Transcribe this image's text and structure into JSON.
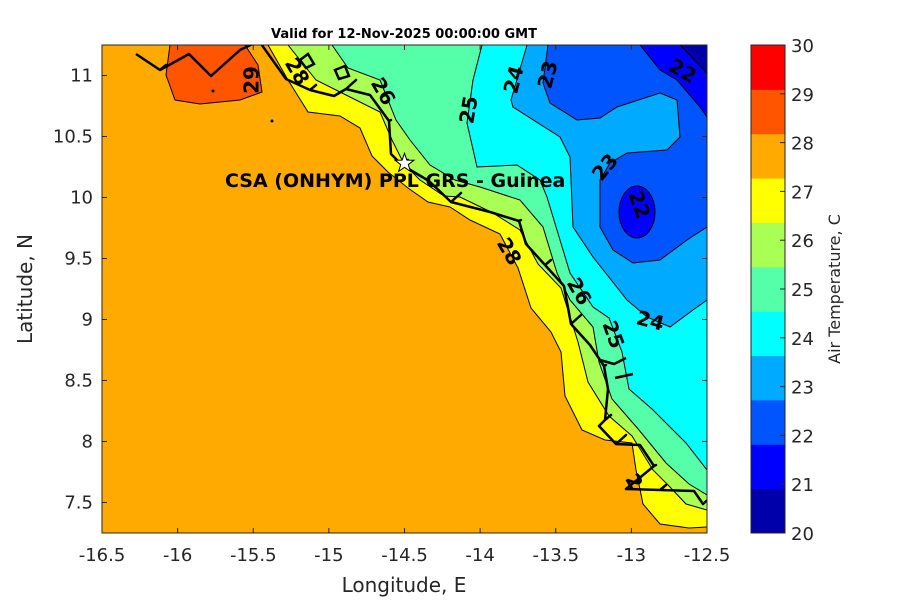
{
  "chart_data": {
    "type": "contour",
    "title": "Valid for 12-Nov-2025 00:00:00 GMT",
    "xlabel": "Longitude, E",
    "ylabel": "Latitude, N",
    "xlim": [
      -16.5,
      -12.5
    ],
    "ylim": [
      7.25,
      11.25
    ],
    "xticks": [
      -16.5,
      -16,
      -15.5,
      -15,
      -14.5,
      -14,
      -13.5,
      -13,
      -12.5
    ],
    "xtick_labels": [
      "-16.5",
      "-16",
      "-15.5",
      "-15",
      "-14.5",
      "-14",
      "-13.5",
      "-13",
      "-12.5"
    ],
    "yticks": [
      7.5,
      8,
      8.5,
      9,
      9.5,
      10,
      10.5,
      11
    ],
    "ytick_labels": [
      "7.5",
      "8",
      "8.5",
      "9",
      "9.5",
      "10",
      "10.5",
      "11"
    ],
    "annotation": "CSA (ONHYM) PPL GRS  - Guinea",
    "marker": {
      "symbol": "star",
      "lon": -14.5,
      "lat": 10.28
    },
    "contour_labels": [
      "29",
      "28",
      "26",
      "25",
      "24",
      "23",
      "22",
      "23",
      "22",
      "24",
      "28",
      "26",
      "25",
      "2"
    ],
    "colorbar": {
      "label": "Air Temperature, C",
      "range": [
        20,
        30
      ],
      "ticks": [
        "20",
        "21",
        "22",
        "23",
        "24",
        "25",
        "26",
        "27",
        "28",
        "29",
        "30"
      ],
      "colors": [
        "#0000aa",
        "#0000ff",
        "#0055ff",
        "#00aaff",
        "#00ffff",
        "#55ffaa",
        "#aaff55",
        "#ffff00",
        "#ffaa00",
        "#ff5500",
        "#ff0000"
      ]
    }
  }
}
